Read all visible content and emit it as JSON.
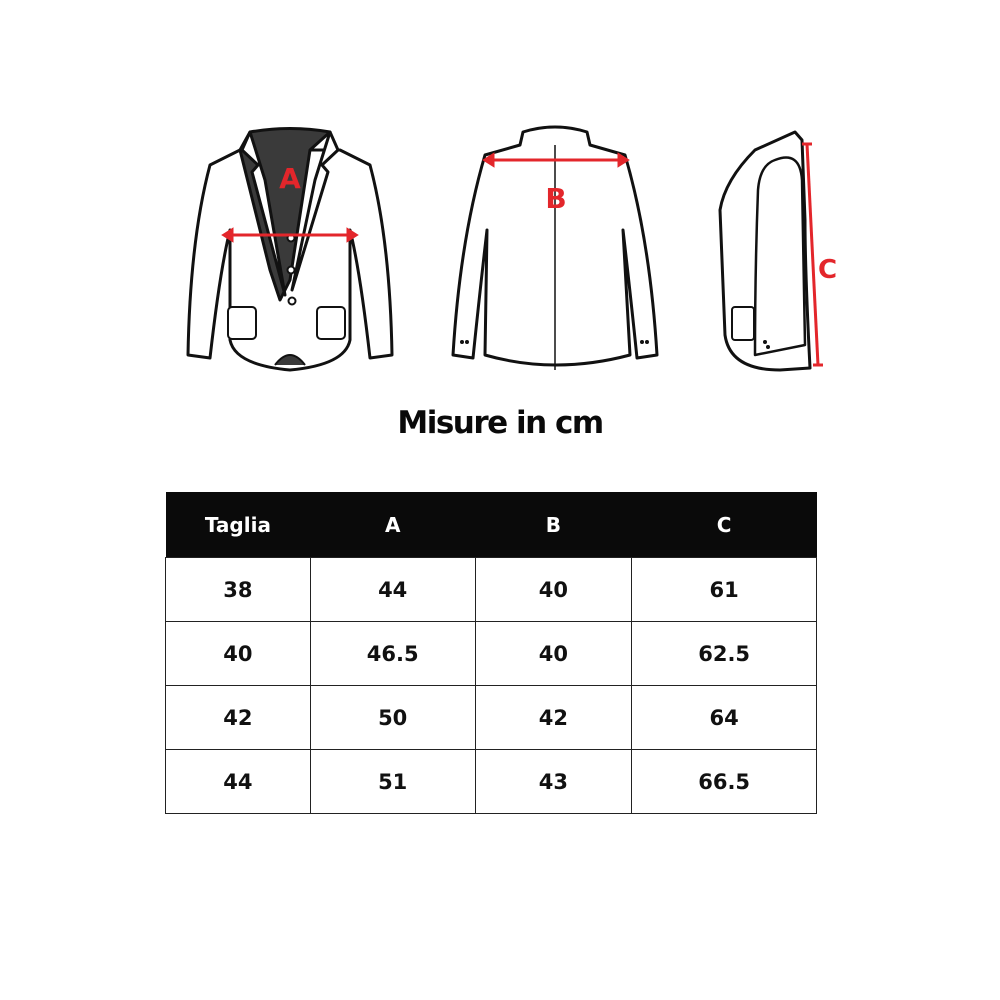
{
  "diagram": {
    "labels": {
      "a": "A",
      "b": "B",
      "c": "C"
    },
    "measure_color": "#e3262b"
  },
  "title": "Misure in cm",
  "table": {
    "headers": [
      "Taglia",
      "A",
      "B",
      "C"
    ],
    "rows": [
      [
        "38",
        "44",
        "40",
        "61"
      ],
      [
        "40",
        "46.5",
        "40",
        "62.5"
      ],
      [
        "42",
        "50",
        "42",
        "64"
      ],
      [
        "44",
        "51",
        "43",
        "66.5"
      ]
    ]
  }
}
